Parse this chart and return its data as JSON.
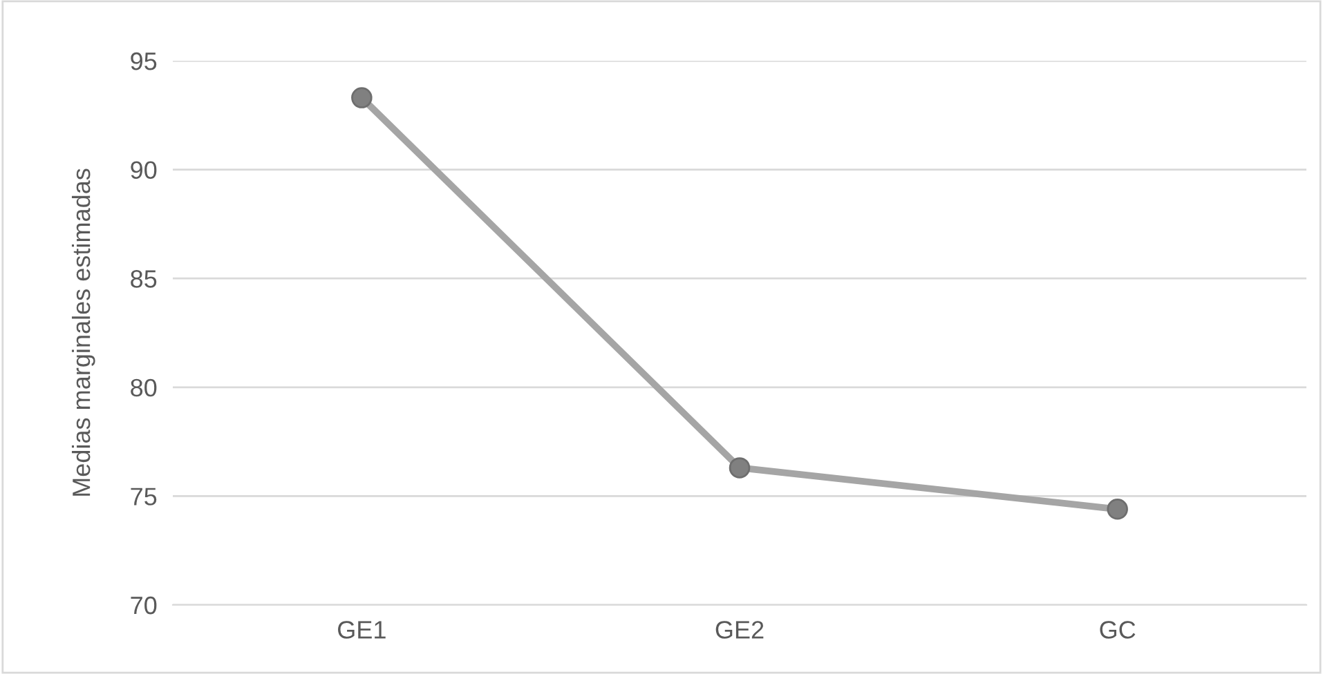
{
  "chart_data": {
    "type": "line",
    "ylabel": "Medias marginales estimadas",
    "categories": [
      "GE1",
      "GE2",
      "GC"
    ],
    "series": [
      {
        "color": "#a5a5a5",
        "values": [
          93.3,
          76.3,
          74.4
        ]
      }
    ],
    "ylim": [
      70,
      95
    ],
    "yticks": [
      70,
      75,
      80,
      85,
      90,
      95
    ],
    "grid": "y",
    "marker": "circle",
    "line_style": "solid"
  }
}
